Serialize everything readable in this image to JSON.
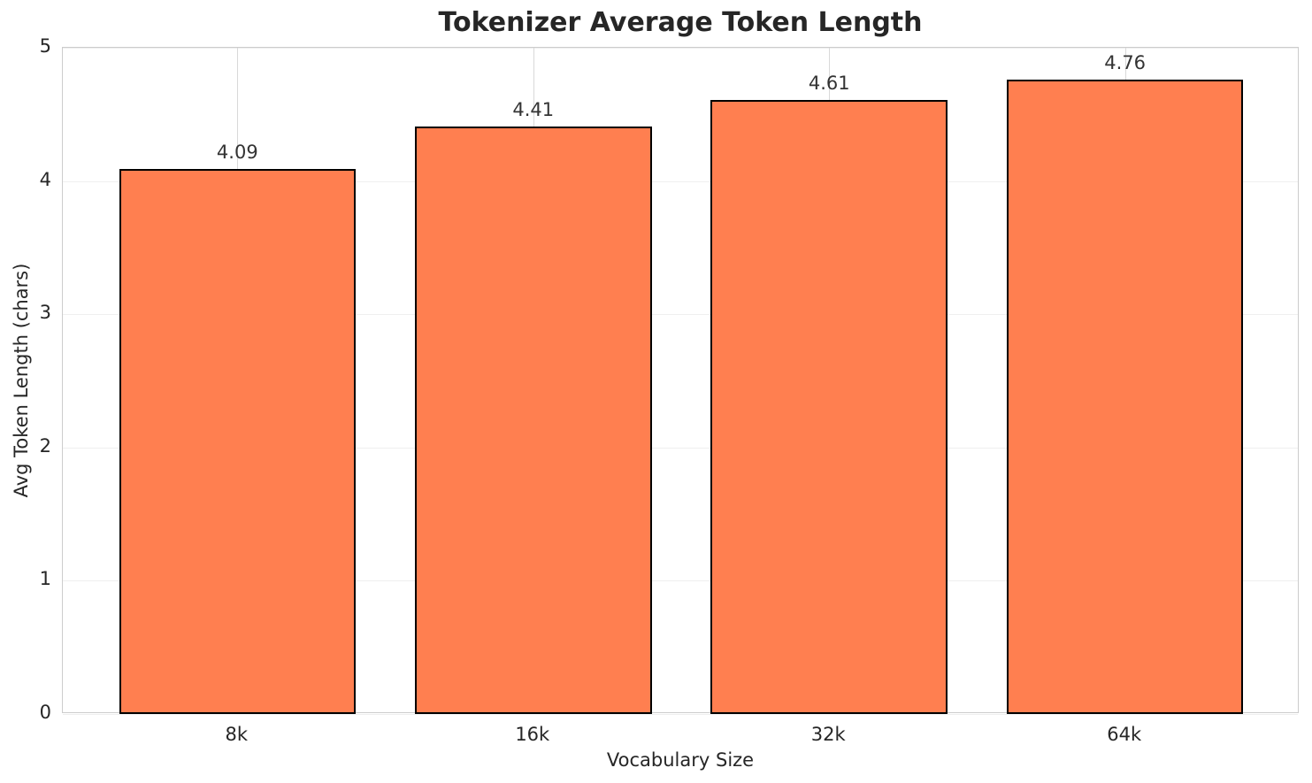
{
  "chart_data": {
    "type": "bar",
    "title": "Tokenizer Average Token Length",
    "xlabel": "Vocabulary Size",
    "ylabel": "Avg Token Length (chars)",
    "categories": [
      "8k",
      "16k",
      "32k",
      "64k"
    ],
    "values": [
      4.09,
      4.41,
      4.61,
      4.76
    ],
    "value_labels": [
      "4.09",
      "4.41",
      "4.61",
      "4.76"
    ],
    "ylim": [
      0,
      5
    ],
    "yticks": [
      0,
      1,
      2,
      3,
      4,
      5
    ],
    "ytick_labels": [
      "0",
      "1",
      "2",
      "3",
      "4",
      "5"
    ],
    "grid": true,
    "legend": "none",
    "bar_width_fraction": 0.8,
    "colors": {
      "bar_fill": "#FF7F50",
      "bar_edge": "#000000",
      "grid_horizontal": "#efefef",
      "grid_vertical": "#d9d9d9",
      "spine": "#cccccc",
      "text": "#262626",
      "background": "#ffffff"
    }
  }
}
